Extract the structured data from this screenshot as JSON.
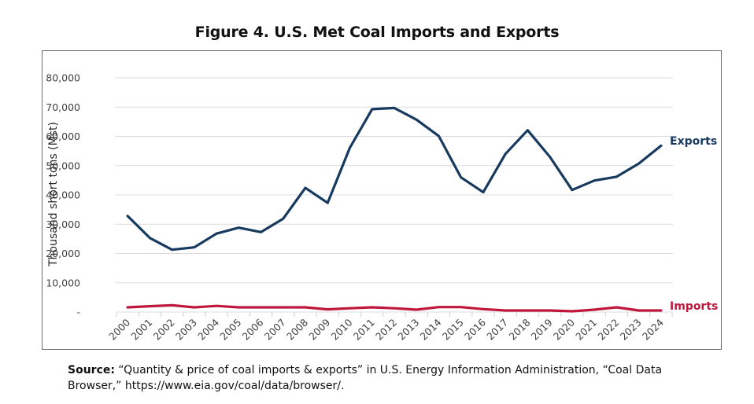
{
  "title": "Figure 4. U.S. Met Coal Imports and Exports",
  "source": {
    "label": "Source:",
    "text": " “Quantity & price of coal imports & exports” in U.S. Energy Information Administration, “Coal Data Browser,” https://www.eia.gov/coal/data/browser/."
  },
  "chart_data": {
    "type": "line",
    "title": "Figure 4. U.S. Met Coal Imports and Exports",
    "xlabel": "",
    "ylabel": "Thousand short tons (Mst)",
    "ylim": [
      0,
      80000
    ],
    "yticks": [
      0,
      10000,
      20000,
      30000,
      40000,
      50000,
      60000,
      70000,
      80000
    ],
    "ytick_labels": [
      "-",
      "10,000",
      "20,000",
      "30,000",
      "40,000",
      "50,000",
      "60,000",
      "70,000",
      "80,000"
    ],
    "grid": true,
    "legend": "inline labels at line ends (right)",
    "categories": [
      "2000",
      "2001",
      "2002",
      "2003",
      "2004",
      "2005",
      "2006",
      "2007",
      "2008",
      "2009",
      "2010",
      "2011",
      "2012",
      "2013",
      "2014",
      "2015",
      "2016",
      "2017",
      "2018",
      "2019",
      "2020",
      "2021",
      "2022",
      "2023",
      "2024"
    ],
    "series": [
      {
        "name": "Exports",
        "color": "#173a5e",
        "values": [
          32800,
          25300,
          21300,
          22100,
          26800,
          28800,
          27300,
          31900,
          42400,
          37300,
          56100,
          69300,
          69700,
          65700,
          60100,
          46000,
          40900,
          54000,
          62100,
          53000,
          41700,
          44900,
          46200,
          50700,
          56800
        ]
      },
      {
        "name": "Imports",
        "color": "#c0173d",
        "values": [
          1600,
          2000,
          2300,
          1600,
          2100,
          1600,
          1600,
          1600,
          1600,
          900,
          1300,
          1600,
          1300,
          800,
          1700,
          1700,
          1000,
          550,
          550,
          550,
          270,
          800,
          1600,
          550,
          550
        ]
      }
    ]
  }
}
